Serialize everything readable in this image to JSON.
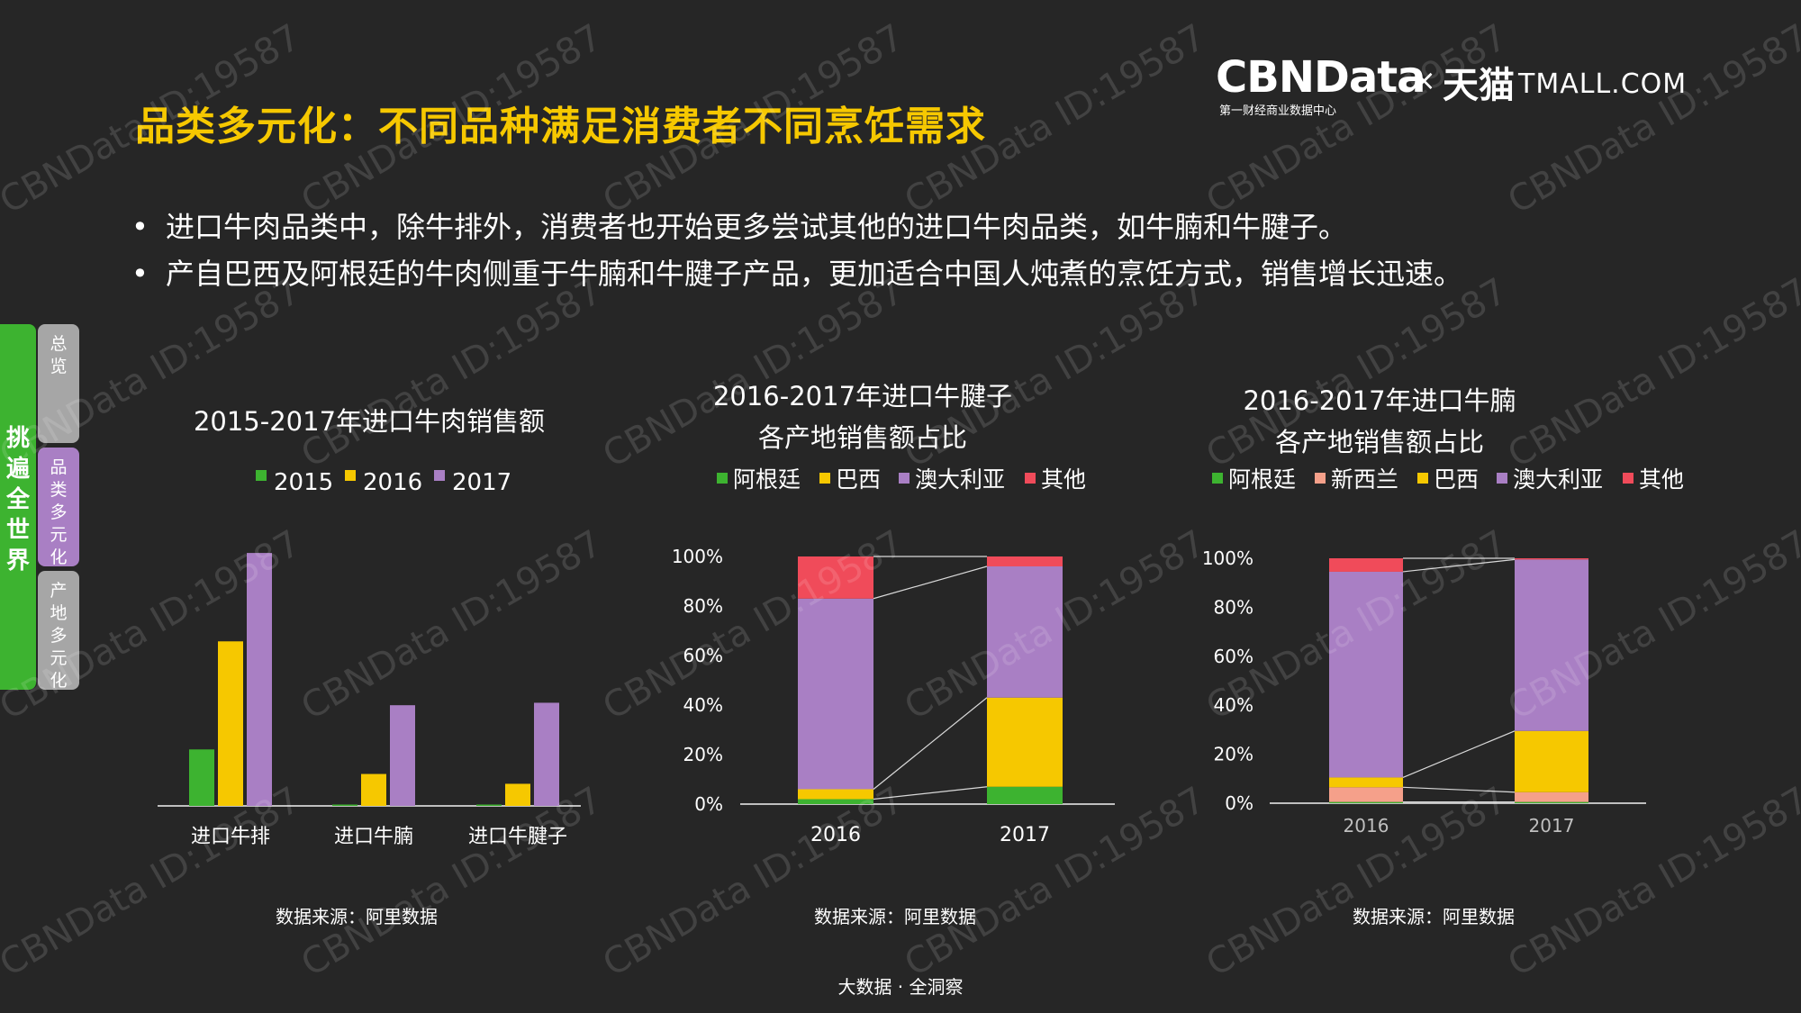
{
  "header": {
    "title": "品类多元化：不同品种满足消费者不同烹饪需求",
    "brand_cbn": "CBNData",
    "brand_sub": "第一财经商业数据中心",
    "brand_x": "×",
    "brand_tm": "天猫",
    "brand_tmall": "TMALL.COM"
  },
  "bullets": [
    "进口牛肉品类中，除牛排外，消费者也开始更多尝试其他的进口牛肉品类，如牛腩和牛腱子。",
    "产自巴西及阿根廷的牛肉侧重于牛腩和牛腱子产品，更加适合中国人炖煮的烹饪方式，销售增长迅速。"
  ],
  "sidebar": {
    "main_label": "挑遍全世界",
    "tabs": [
      {
        "label": "总览",
        "color": "#a6a6a6"
      },
      {
        "label": "品类多元化",
        "color": "#a97fc4"
      },
      {
        "label": "产地多元化",
        "color": "#a6a6a6"
      }
    ]
  },
  "colors": {
    "green": "#3db330",
    "yellow": "#f6c800",
    "purple": "#a97fc4",
    "red": "#f04b5a",
    "salmon": "#f5a08a",
    "axis": "#bfbfbf"
  },
  "chart_data": [
    {
      "type": "bar",
      "title": "2015-2017年进口牛肉销售额",
      "categories": [
        "进口牛排",
        "进口牛腩",
        "进口牛腱子"
      ],
      "series": [
        {
          "name": "2015",
          "color": "#3db330",
          "values": [
            23,
            0.3,
            0.5
          ]
        },
        {
          "name": "2016",
          "color": "#f6c800",
          "values": [
            67,
            13,
            9
          ]
        },
        {
          "name": "2017",
          "color": "#a97fc4",
          "values": [
            103,
            41,
            42
          ]
        }
      ],
      "ylim": [
        0,
        110
      ],
      "source": "数据来源：阿里数据"
    },
    {
      "type": "bar",
      "subtype": "stacked-percent",
      "title": "2016-2017年进口牛腱子\n各产地销售额占比",
      "title_lines": [
        "2016-2017年进口牛腱子",
        "各产地销售额占比"
      ],
      "categories": [
        "2016",
        "2017"
      ],
      "series": [
        {
          "name": "阿根廷",
          "color": "#3db330",
          "values": [
            2,
            7
          ]
        },
        {
          "name": "巴西",
          "color": "#f6c800",
          "values": [
            4,
            36
          ]
        },
        {
          "name": "澳大利亚",
          "color": "#a97fc4",
          "values": [
            77,
            53
          ]
        },
        {
          "name": "其他",
          "color": "#f04b5a",
          "values": [
            17,
            4
          ]
        }
      ],
      "ylim": [
        0,
        100
      ],
      "yticks": [
        "0%",
        "20%",
        "40%",
        "60%",
        "80%",
        "100%"
      ],
      "source": "数据来源：阿里数据"
    },
    {
      "type": "bar",
      "subtype": "stacked-percent",
      "title": "2016-2017年进口牛腩\n各产地销售额占比",
      "title_lines": [
        "2016-2017年进口牛腩",
        "各产地销售额占比"
      ],
      "categories": [
        "2016",
        "2017"
      ],
      "series": [
        {
          "name": "阿根廷",
          "color": "#3db330",
          "values": [
            0.5,
            0.5
          ]
        },
        {
          "name": "新西兰",
          "color": "#f5a08a",
          "values": [
            6,
            4
          ]
        },
        {
          "name": "巴西",
          "color": "#f6c800",
          "values": [
            4,
            25
          ]
        },
        {
          "name": "澳大利亚",
          "color": "#a97fc4",
          "values": [
            84,
            70
          ]
        },
        {
          "name": "其他",
          "color": "#f04b5a",
          "values": [
            5.5,
            0.5
          ]
        }
      ],
      "ylim": [
        0,
        100
      ],
      "yticks": [
        "0%",
        "20%",
        "40%",
        "60%",
        "80%",
        "100%"
      ],
      "source": "数据来源：阿里数据"
    }
  ],
  "footer": "大数据 · 全洞察",
  "watermark": "CBNData ID:19587"
}
